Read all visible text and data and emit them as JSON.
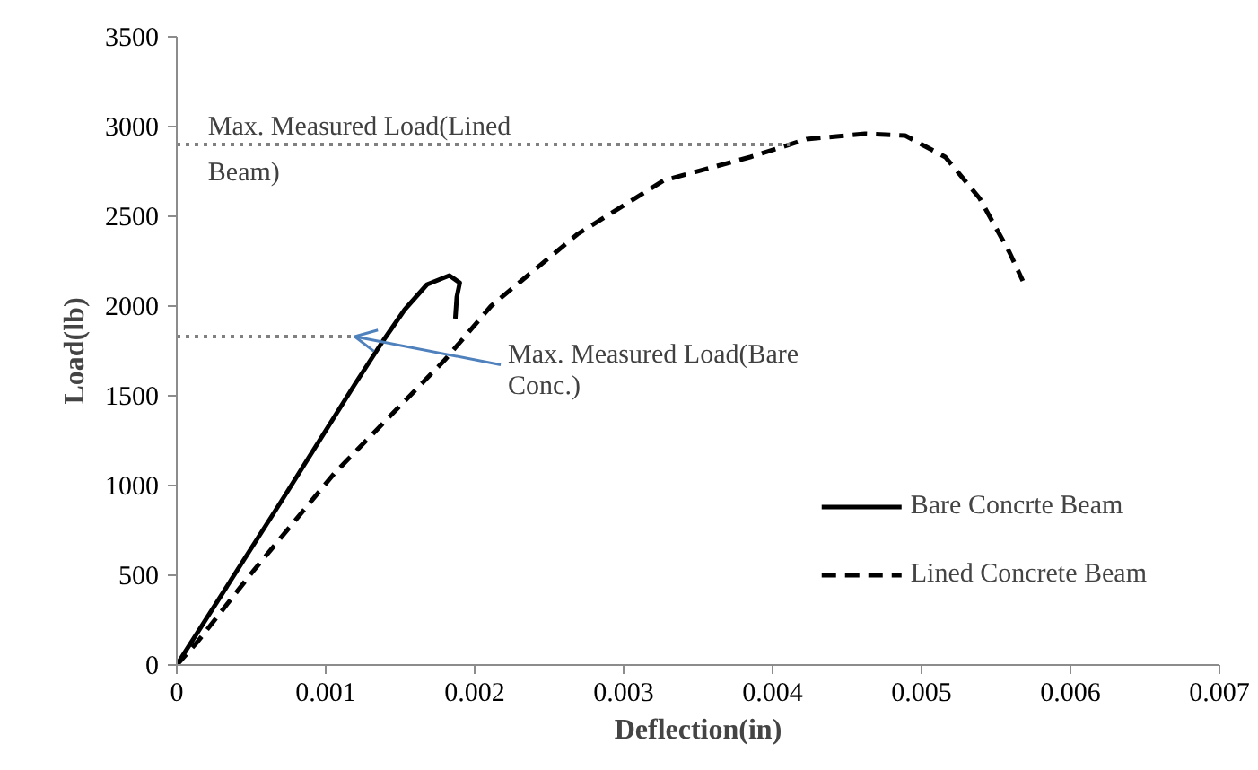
{
  "chart_data": {
    "type": "line",
    "xlabel": "Deflection(in)",
    "ylabel": "Load(lb)",
    "xlim": [
      0,
      0.007
    ],
    "xticks": [
      0,
      0.001,
      0.002,
      0.003,
      0.004,
      0.005,
      0.006,
      0.007
    ],
    "ylim": [
      0,
      3500
    ],
    "yticks": [
      0,
      500,
      1000,
      1500,
      2000,
      2500,
      3000,
      3500
    ],
    "grid": false,
    "legend": "bottom right",
    "marker": "none",
    "series": [
      {
        "name": "Bare Concrte Beam",
        "color": "#000000",
        "line_style": "solid",
        "x": [
          0,
          0.0007,
          0.0012,
          0.00138,
          0.00153,
          0.00168,
          0.00183,
          0.0019,
          0.00188,
          0.00187
        ],
        "values": [
          0,
          910,
          1570,
          1800,
          1980,
          2120,
          2170,
          2130,
          2050,
          1930
        ]
      },
      {
        "name": "Lined Concrete Beam",
        "color": "#000000",
        "line_style": "dashed",
        "x": [
          0,
          0.00014,
          0.0005,
          0.00106,
          0.0018,
          0.00211,
          0.00269,
          0.00327,
          0.00385,
          0.00423,
          0.00462,
          0.00489,
          0.00516,
          0.00539,
          0.00559,
          0.00568
        ],
        "values": [
          0,
          130,
          510,
          1070,
          1700,
          2000,
          2400,
          2700,
          2830,
          2930,
          2960,
          2950,
          2830,
          2600,
          2300,
          2140
        ]
      }
    ],
    "ref_lines": [
      {
        "axis": "y",
        "value": 2900,
        "label": "Max. Measured Load(Lined Beam)",
        "color": "#808080",
        "line_style": "dotted"
      },
      {
        "axis": "y",
        "value": 1830,
        "label": "Max. Measured Load(Bare Conc.)",
        "color": "#808080",
        "line_style": "dotted"
      }
    ]
  }
}
